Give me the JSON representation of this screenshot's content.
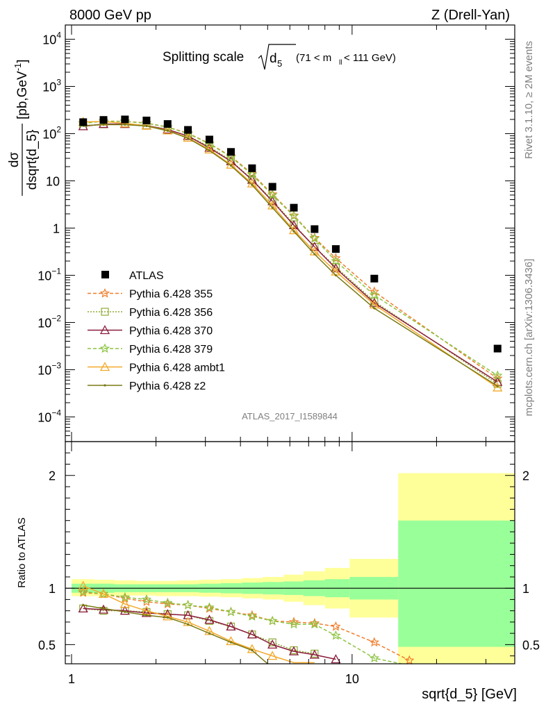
{
  "header": {
    "left": "8000 GeV pp",
    "right": "Z (Drell-Yan)"
  },
  "title": {
    "prefix": "Splitting scale",
    "var": "d",
    "sub": "5",
    "cut_open": "(71 < m",
    "cut_sub": "ll",
    "cut_close": " < 111 GeV)"
  },
  "side_labels": {
    "rivet": "Rivet 3.1.10, ≥ 2M events",
    "mcplots": "mcplots.cern.ch [arXiv:1306.3436]"
  },
  "analysis_id": "ATLAS_2017_I1589844",
  "chart_data": [
    {
      "type": "line",
      "xscale": "log",
      "yscale": "log",
      "xlim": [
        0.95,
        38
      ],
      "ylim": [
        3e-05,
        20000
      ],
      "ylabel_num": "dσ",
      "ylabel_den": "dsqrt{d_5}",
      "ylabel_units": "[pb,GeV",
      "ylabel_units_exp": "-1",
      "ylabel_units_close": "]",
      "yticks": [
        {
          "v": 0.0001,
          "base": "10",
          "exp": "−4"
        },
        {
          "v": 0.001,
          "base": "10",
          "exp": "−3"
        },
        {
          "v": 0.01,
          "base": "10",
          "exp": "−2"
        },
        {
          "v": 0.1,
          "base": "10",
          "exp": "−1"
        },
        {
          "v": 1,
          "base": "1",
          "exp": ""
        },
        {
          "v": 10,
          "base": "10",
          "exp": ""
        },
        {
          "v": 100,
          "base": "10",
          "exp": "2"
        },
        {
          "v": 1000,
          "base": "10",
          "exp": "3"
        },
        {
          "v": 10000,
          "base": "10",
          "exp": "4"
        }
      ],
      "x": [
        1.1,
        1.3,
        1.55,
        1.85,
        2.2,
        2.6,
        3.1,
        3.7,
        4.4,
        5.2,
        6.2,
        7.35,
        8.75,
        12,
        33
      ],
      "data": {
        "name": "ATLAS",
        "values": [
          175,
          195,
          200,
          190,
          160,
          120,
          75,
          41,
          18.5,
          7.5,
          2.7,
          0.95,
          0.36,
          0.085,
          0.0028
        ]
      },
      "series": [
        {
          "name": "Pythia 6.428 355",
          "color": "#f07d2b",
          "marker": "star",
          "dash": "5,3",
          "x": [
            1.1,
            1.3,
            1.55,
            1.85,
            2.2,
            2.6,
            3.1,
            3.7,
            4.4,
            5.2,
            6.2,
            7.35,
            8.75,
            12,
            33
          ],
          "values": [
            168,
            185,
            182,
            168,
            138,
            102,
            62,
            33,
            14.2,
            5.2,
            1.85,
            0.62,
            0.23,
            0.045,
            0.00065
          ]
        },
        {
          "name": "Pythia 6.428 356",
          "color": "#8caa33",
          "marker": "square",
          "dash": "2,2",
          "x": [
            1.1,
            1.3,
            1.55,
            1.85,
            2.2,
            2.6,
            3.1,
            3.7,
            4.4,
            5.2,
            6.2,
            7.35,
            8.75,
            12,
            33
          ],
          "values": [
            143,
            158,
            160,
            150,
            122,
            90,
            53,
            27,
            10.8,
            3.9,
            1.2,
            0.4,
            0.15,
            0.028,
            0.0005
          ]
        },
        {
          "name": "Pythia 6.428 370",
          "color": "#8b1a3a",
          "marker": "triangle",
          "dash": "",
          "x": [
            1.1,
            1.3,
            1.55,
            1.85,
            2.2,
            2.6,
            3.1,
            3.7,
            4.4,
            5.2,
            6.2,
            7.35,
            8.75,
            12,
            33
          ],
          "values": [
            143,
            160,
            160,
            148,
            122,
            89,
            50,
            26,
            10.5,
            3.7,
            1.15,
            0.4,
            0.14,
            0.026,
            0.00055
          ]
        },
        {
          "name": "Pythia 6.428 379",
          "color": "#8bc43f",
          "marker": "star",
          "dash": "5,3",
          "x": [
            1.1,
            1.3,
            1.55,
            1.85,
            2.2,
            2.6,
            3.1,
            3.7,
            4.4,
            5.2,
            6.2,
            7.35,
            8.75,
            12,
            33
          ],
          "values": [
            165,
            183,
            180,
            166,
            137,
            100,
            61,
            32,
            13.5,
            5.0,
            1.8,
            0.6,
            0.2,
            0.038,
            0.00075
          ]
        },
        {
          "name": "Pythia 6.428 ambt1",
          "color": "#f3a92a",
          "marker": "triangle",
          "dash": "",
          "x": [
            1.1,
            1.3,
            1.55,
            1.85,
            2.2,
            2.6,
            3.1,
            3.7,
            4.4,
            5.2,
            6.2,
            7.35,
            8.75,
            12,
            33
          ],
          "values": [
            178,
            180,
            165,
            147,
            117,
            82,
            46,
            22,
            8.8,
            3.0,
            0.9,
            0.32,
            0.12,
            0.024,
            0.00042
          ]
        },
        {
          "name": "Pythia 6.428 z2",
          "color": "#7a7a14",
          "marker": "dot",
          "dash": "",
          "x": [
            1.1,
            1.3,
            1.55,
            1.85,
            2.2,
            2.6,
            3.1,
            3.7,
            4.4,
            5.2,
            6.2,
            7.35,
            8.75,
            12,
            33
          ],
          "values": [
            148,
            155,
            155,
            145,
            115,
            80,
            44,
            21,
            8.2,
            2.7,
            0.85,
            0.28,
            0.1,
            0.02,
            0.00045
          ]
        }
      ]
    },
    {
      "type": "line",
      "xscale": "log",
      "xlim": [
        0.95,
        38
      ],
      "ylim": [
        0.33,
        2.3
      ],
      "xlabel": "sqrt{d_5} [GeV]",
      "ylabel": "Ratio to ATLAS",
      "xticks": [
        {
          "v": 1,
          "label": "1"
        },
        {
          "v": 10,
          "label": "10"
        }
      ],
      "yticks": [
        {
          "v": 0.5,
          "label": "0.5"
        },
        {
          "v": 1,
          "label": "1"
        },
        {
          "v": 2,
          "label": "2"
        }
      ],
      "band_edges": [
        1.0,
        1.2,
        1.42,
        1.7,
        2.0,
        2.4,
        2.85,
        3.4,
        4.05,
        4.8,
        5.7,
        6.7,
        8.0,
        9.8,
        14.6,
        38
      ],
      "stat_band": [
        [
          0.96,
          1.04
        ],
        [
          0.96,
          1.04
        ],
        [
          0.965,
          1.035
        ],
        [
          0.965,
          1.035
        ],
        [
          0.965,
          1.035
        ],
        [
          0.965,
          1.035
        ],
        [
          0.96,
          1.04
        ],
        [
          0.955,
          1.045
        ],
        [
          0.95,
          1.05
        ],
        [
          0.945,
          1.055
        ],
        [
          0.94,
          1.06
        ],
        [
          0.93,
          1.07
        ],
        [
          0.92,
          1.08
        ],
        [
          0.9,
          1.1
        ],
        [
          0.48,
          1.6
        ]
      ],
      "total_band": [
        [
          0.93,
          1.08
        ],
        [
          0.93,
          1.075
        ],
        [
          0.935,
          1.07
        ],
        [
          0.935,
          1.065
        ],
        [
          0.93,
          1.065
        ],
        [
          0.93,
          1.07
        ],
        [
          0.925,
          1.075
        ],
        [
          0.92,
          1.08
        ],
        [
          0.91,
          1.09
        ],
        [
          0.9,
          1.1
        ],
        [
          0.88,
          1.12
        ],
        [
          0.85,
          1.15
        ],
        [
          0.82,
          1.18
        ],
        [
          0.74,
          1.26
        ],
        [
          0.3,
          2.02
        ]
      ],
      "series": [
        {
          "name": "Pythia 6.428 355",
          "x": [
            1.1,
            1.3,
            1.55,
            1.85,
            2.2,
            2.6,
            3.1,
            3.7,
            4.4,
            5.2,
            6.2,
            7.35,
            8.75,
            12,
            16
          ],
          "values": [
            0.96,
            0.95,
            0.91,
            0.88,
            0.86,
            0.85,
            0.82,
            0.79,
            0.76,
            0.71,
            0.7,
            0.69,
            0.66,
            0.52,
            0.36
          ]
        },
        {
          "name": "Pythia 6.428 356",
          "x": [
            1.1,
            1.3,
            1.55,
            1.85,
            2.2,
            2.6,
            3.1,
            3.7,
            4.4,
            5.2,
            6.2,
            7.35
          ],
          "values": [
            0.82,
            0.8,
            0.8,
            0.79,
            0.77,
            0.76,
            0.71,
            0.66,
            0.59,
            0.52,
            0.45,
            0.42
          ]
        },
        {
          "name": "Pythia 6.428 370",
          "x": [
            1.1,
            1.3,
            1.55,
            1.85,
            2.2,
            2.6,
            3.1,
            3.7,
            4.4,
            5.2,
            6.2,
            7.35,
            8.75
          ],
          "values": [
            0.82,
            0.81,
            0.8,
            0.78,
            0.77,
            0.76,
            0.72,
            0.66,
            0.59,
            0.5,
            0.44,
            0.41,
            0.37
          ]
        },
        {
          "name": "Pythia 6.428 379",
          "x": [
            1.1,
            1.3,
            1.55,
            1.85,
            2.2,
            2.6,
            3.1,
            3.7,
            4.4,
            5.2,
            6.2,
            7.35,
            8.75,
            12,
            15
          ],
          "values": [
            0.97,
            0.95,
            0.92,
            0.9,
            0.87,
            0.85,
            0.83,
            0.79,
            0.75,
            0.71,
            0.68,
            0.68,
            0.58,
            0.38,
            0.33
          ]
        },
        {
          "name": "Pythia 6.428 ambt1",
          "x": [
            1.1,
            1.3,
            1.55,
            1.85,
            2.2,
            2.6,
            3.1,
            3.7,
            4.4,
            5.2,
            6.2,
            7.35
          ],
          "values": [
            1.02,
            0.95,
            0.86,
            0.8,
            0.75,
            0.7,
            0.62,
            0.53,
            0.46,
            0.4,
            0.34,
            0.34
          ]
        },
        {
          "name": "Pythia 6.428 z2",
          "x": [
            1.1,
            1.3,
            1.55,
            1.85,
            2.2,
            2.6,
            3.1,
            3.7,
            4.4,
            5.0
          ],
          "values": [
            0.85,
            0.82,
            0.79,
            0.76,
            0.74,
            0.68,
            0.6,
            0.52,
            0.45,
            0.33
          ]
        }
      ]
    }
  ]
}
